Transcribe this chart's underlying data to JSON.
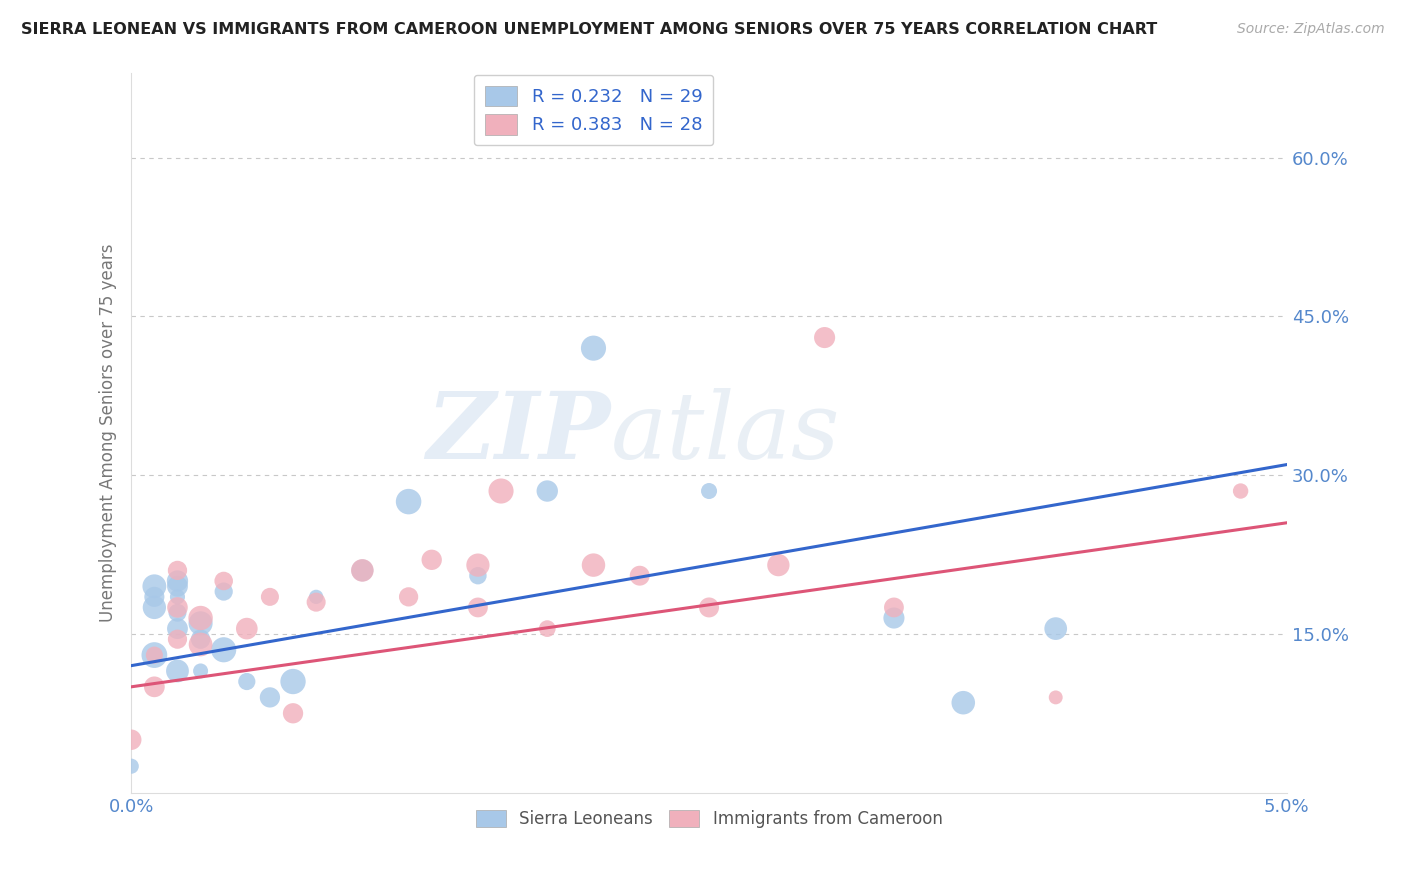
{
  "title": "SIERRA LEONEAN VS IMMIGRANTS FROM CAMEROON UNEMPLOYMENT AMONG SENIORS OVER 75 YEARS CORRELATION CHART",
  "source": "Source: ZipAtlas.com",
  "ylabel": "Unemployment Among Seniors over 75 years",
  "xlim": [
    0.0,
    0.05
  ],
  "ylim": [
    0.0,
    0.68
  ],
  "xticks": [
    0.0,
    0.05
  ],
  "xticklabels": [
    "0.0%",
    "5.0%"
  ],
  "yticks": [
    0.15,
    0.3,
    0.45,
    0.6
  ],
  "yticklabels": [
    "15.0%",
    "30.0%",
    "45.0%",
    "60.0%"
  ],
  "gridcolor": "#c8c8c8",
  "background_color": "#ffffff",
  "watermark_zip": "ZIP",
  "watermark_atlas": "atlas",
  "legend_labels": [
    "Sierra Leoneans",
    "Immigrants from Cameroon"
  ],
  "legend_r": [
    0.232,
    0.383
  ],
  "legend_n": [
    29,
    28
  ],
  "series1_color": "#a8c8e8",
  "series2_color": "#f0b0bc",
  "line1_color": "#3366cc",
  "line2_color": "#dd5577",
  "series1_x": [
    0.0,
    0.001,
    0.001,
    0.001,
    0.001,
    0.002,
    0.002,
    0.002,
    0.002,
    0.002,
    0.002,
    0.003,
    0.003,
    0.003,
    0.004,
    0.004,
    0.005,
    0.006,
    0.007,
    0.008,
    0.01,
    0.012,
    0.015,
    0.018,
    0.02,
    0.025,
    0.033,
    0.036,
    0.04
  ],
  "series1_y": [
    0.025,
    0.195,
    0.185,
    0.175,
    0.13,
    0.2,
    0.195,
    0.185,
    0.17,
    0.155,
    0.115,
    0.16,
    0.145,
    0.115,
    0.19,
    0.135,
    0.105,
    0.09,
    0.105,
    0.185,
    0.21,
    0.275,
    0.205,
    0.285,
    0.42,
    0.285,
    0.165,
    0.085,
    0.155
  ],
  "series2_x": [
    0.0,
    0.001,
    0.001,
    0.002,
    0.002,
    0.002,
    0.003,
    0.003,
    0.004,
    0.005,
    0.006,
    0.007,
    0.008,
    0.01,
    0.012,
    0.013,
    0.015,
    0.015,
    0.016,
    0.018,
    0.02,
    0.022,
    0.025,
    0.028,
    0.03,
    0.033,
    0.04,
    0.048
  ],
  "series2_y": [
    0.05,
    0.13,
    0.1,
    0.21,
    0.175,
    0.145,
    0.165,
    0.14,
    0.2,
    0.155,
    0.185,
    0.075,
    0.18,
    0.21,
    0.185,
    0.22,
    0.215,
    0.175,
    0.285,
    0.155,
    0.215,
    0.205,
    0.175,
    0.215,
    0.43,
    0.175,
    0.09,
    0.285
  ],
  "line1_x0": 0.0,
  "line1_y0": 0.12,
  "line1_x1": 0.05,
  "line1_y1": 0.31,
  "line2_x0": 0.0,
  "line2_y0": 0.1,
  "line2_x1": 0.05,
  "line2_y1": 0.255
}
